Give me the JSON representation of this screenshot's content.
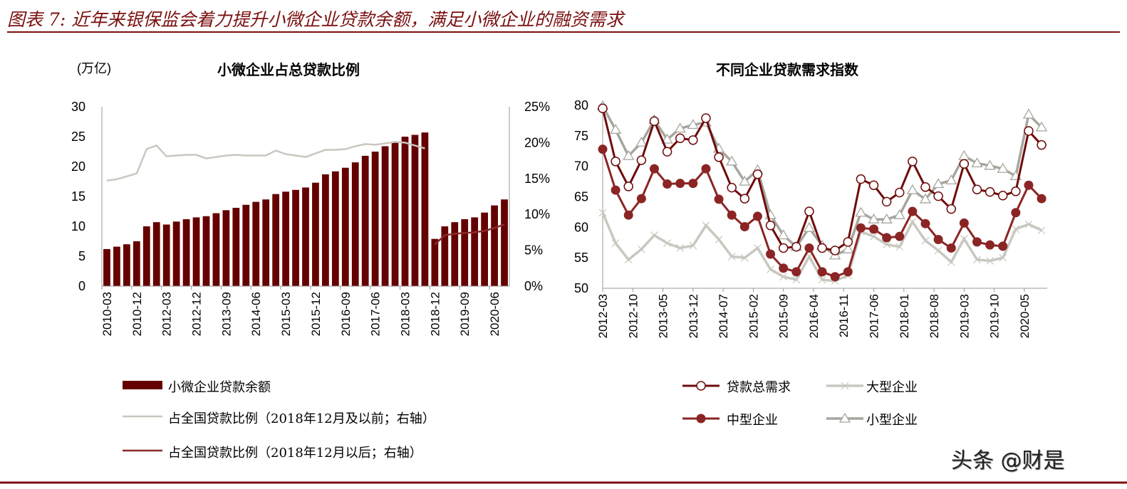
{
  "title": "图表 7: 近年来银保监会着力提升小微企业贷款余额，满足小微企业的融资需求",
  "watermark": "头条 @财是",
  "colors": {
    "bar": "#650000",
    "pre_line": "#c8c8c0",
    "post_line": "#8b2a2a",
    "total": "#6e0b0b",
    "large": "#c8c8c0",
    "mid": "#8b2525",
    "small": "#a6a69e",
    "rule": "#7a1010"
  },
  "chart_data": [
    {
      "type": "bar",
      "title": "小微企业占总贷款比例",
      "ylabel": "(万亿)",
      "ylim": [
        0,
        30
      ],
      "yticks": [
        0,
        5,
        10,
        15,
        20,
        25,
        30
      ],
      "y2lim": [
        0,
        25
      ],
      "y2ticks": [
        "0%",
        "5%",
        "10%",
        "15%",
        "20%",
        "25%"
      ],
      "grid": false,
      "legend_placement": "bottom",
      "categories": [
        "2010-03",
        "2010-06",
        "2010-09",
        "2010-12",
        "2011-06",
        "2011-12",
        "2012-03",
        "2012-06",
        "2012-09",
        "2012-12",
        "2013-03",
        "2013-06",
        "2013-09",
        "2013-12",
        "2014-03",
        "2014-06",
        "2014-09",
        "2014-12",
        "2015-03",
        "2015-06",
        "2015-09",
        "2015-12",
        "2016-03",
        "2016-06",
        "2016-09",
        "2016-12",
        "2017-03",
        "2017-06",
        "2017-09",
        "2017-12",
        "2018-03",
        "2018-06",
        "2018-09",
        "2018-12",
        "2019-03",
        "2019-06",
        "2019-09",
        "2019-12",
        "2020-03",
        "2020-06",
        "2020-09"
      ],
      "xtick_labels": [
        "2010-03",
        "2010-12",
        "2012-03",
        "2012-12",
        "2013-09",
        "2014-06",
        "2015-03",
        "2015-12",
        "2016-09",
        "2017-06",
        "2018-03",
        "2018-12",
        "2019-09",
        "2020-06"
      ],
      "series": [
        {
          "name": "小微企业贷款余额",
          "kind": "bar",
          "axis": "left",
          "values": [
            6.2,
            6.6,
            7.0,
            7.5,
            10.0,
            10.7,
            10.3,
            10.8,
            11.2,
            11.5,
            11.7,
            12.2,
            12.7,
            13.1,
            13.6,
            14.1,
            14.5,
            15.4,
            15.8,
            16.1,
            16.5,
            17.3,
            18.7,
            19.2,
            19.8,
            20.7,
            21.8,
            22.5,
            23.4,
            24.1,
            25.0,
            25.3,
            25.7,
            7.9,
            10.0,
            10.7,
            11.2,
            11.5,
            12.3,
            13.5,
            14.5
          ]
        },
        {
          "name": "占全国贷款比例（2018年12月及以前；右轴）",
          "kind": "line",
          "axis": "right",
          "values": [
            14.7,
            14.9,
            15.3,
            15.7,
            19.1,
            19.6,
            18.1,
            18.2,
            18.3,
            18.3,
            17.8,
            18.0,
            18.2,
            18.3,
            18.2,
            18.2,
            18.2,
            18.9,
            18.4,
            18.2,
            18.0,
            18.5,
            19.0,
            19.0,
            19.1,
            19.5,
            19.8,
            19.7,
            19.9,
            20.1,
            20.0,
            19.6,
            19.2,
            null,
            null,
            null,
            null,
            null,
            null,
            null,
            null
          ]
        },
        {
          "name": "占全国贷款比例（2018年12月以后；右轴）",
          "kind": "line",
          "axis": "right",
          "values": [
            null,
            null,
            null,
            null,
            null,
            null,
            null,
            null,
            null,
            null,
            null,
            null,
            null,
            null,
            null,
            null,
            null,
            null,
            null,
            null,
            null,
            null,
            null,
            null,
            null,
            null,
            null,
            null,
            null,
            null,
            null,
            null,
            null,
            5.8,
            7.1,
            7.3,
            7.4,
            7.5,
            7.7,
            8.1,
            8.6
          ]
        }
      ]
    },
    {
      "type": "line",
      "title": "不同企业贷款需求指数",
      "ylim": [
        50,
        80
      ],
      "yticks": [
        50,
        55,
        60,
        65,
        70,
        75,
        80
      ],
      "grid": false,
      "legend_placement": "bottom",
      "x": [
        "2012-03",
        "2012-06",
        "2012-09",
        "2012-12",
        "2013-03",
        "2013-06",
        "2013-09",
        "2013-12",
        "2014-03",
        "2014-06",
        "2014-09",
        "2014-12",
        "2015-03",
        "2015-06",
        "2015-09",
        "2015-12",
        "2016-03",
        "2016-06",
        "2016-09",
        "2016-12",
        "2017-03",
        "2017-06",
        "2017-09",
        "2017-12",
        "2018-03",
        "2018-06",
        "2018-09",
        "2018-12",
        "2019-03",
        "2019-06",
        "2019-09",
        "2019-12",
        "2020-03",
        "2020-06",
        "2020-09"
      ],
      "xtick_labels": [
        "2012-03",
        "2012-10",
        "2013-05",
        "2013-12",
        "2014-07",
        "2015-02",
        "2015-09",
        "2016-04",
        "2016-11",
        "2017-06",
        "2018-01",
        "2018-08",
        "2019-03",
        "2019-10",
        "2020-05"
      ],
      "series": [
        {
          "name": "贷款总需求",
          "marker": "circle-open",
          "values": [
            79.5,
            70.8,
            66.7,
            71.0,
            77.4,
            72.4,
            74.6,
            74.3,
            77.9,
            71.5,
            66.5,
            64.7,
            68.7,
            60.3,
            56.6,
            56.8,
            62.6,
            56.6,
            56.2,
            57.6,
            67.9,
            66.9,
            64.2,
            65.7,
            70.8,
            66.6,
            65.1,
            63.0,
            70.4,
            66.2,
            65.8,
            65.2,
            65.9,
            75.8,
            73.5
          ]
        },
        {
          "name": "大型企业",
          "marker": "x",
          "values": [
            62.4,
            57.4,
            54.7,
            56.4,
            58.7,
            57.4,
            56.6,
            57.0,
            60.3,
            58.0,
            55.2,
            55.0,
            56.6,
            53.1,
            51.9,
            51.4,
            55.2,
            51.4,
            51.2,
            52.1,
            59.3,
            58.5,
            57.2,
            56.8,
            60.9,
            57.8,
            56.2,
            54.3,
            58.1,
            54.7,
            54.5,
            55.0,
            59.7,
            60.5,
            59.5
          ]
        },
        {
          "name": "中型企业",
          "marker": "circle-filled",
          "values": [
            72.8,
            66.1,
            62.0,
            64.7,
            69.6,
            67.1,
            67.2,
            67.2,
            69.6,
            64.6,
            62.0,
            60.1,
            61.8,
            55.6,
            53.3,
            52.7,
            56.6,
            52.7,
            51.9,
            52.7,
            59.9,
            59.7,
            58.3,
            58.5,
            62.6,
            60.6,
            58.0,
            56.6,
            60.7,
            57.6,
            57.1,
            56.9,
            62.4,
            66.9,
            64.7
          ]
        },
        {
          "name": "小型企业",
          "marker": "triangle-open",
          "values": [
            79.9,
            76.0,
            71.7,
            73.9,
            77.6,
            74.4,
            76.2,
            76.8,
            77.2,
            72.9,
            70.8,
            67.5,
            69.4,
            62.0,
            58.7,
            56.8,
            59.9,
            57.0,
            55.4,
            56.4,
            62.4,
            61.3,
            61.3,
            62.0,
            66.1,
            64.6,
            67.1,
            67.7,
            71.7,
            70.5,
            70.1,
            69.6,
            68.4,
            78.5,
            76.4
          ]
        }
      ]
    }
  ]
}
